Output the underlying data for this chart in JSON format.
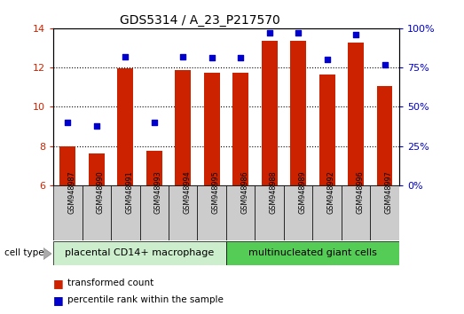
{
  "title": "GDS5314 / A_23_P217570",
  "samples": [
    "GSM948987",
    "GSM948990",
    "GSM948991",
    "GSM948993",
    "GSM948994",
    "GSM948995",
    "GSM948986",
    "GSM948988",
    "GSM948989",
    "GSM948992",
    "GSM948996",
    "GSM948997"
  ],
  "transformed_count": [
    7.98,
    7.62,
    11.97,
    7.77,
    11.88,
    11.72,
    11.72,
    13.35,
    13.35,
    11.63,
    13.25,
    11.07
  ],
  "percentile_rank_pct": [
    40,
    38,
    82,
    40,
    82,
    81,
    81,
    97,
    97,
    80,
    96,
    77
  ],
  "group1_label": "placental CD14+ macrophage",
  "group2_label": "multinucleated giant cells",
  "group1_count": 6,
  "group2_count": 6,
  "ylim_left": [
    6,
    14
  ],
  "ylim_right": [
    0,
    100
  ],
  "yticks_left": [
    6,
    8,
    10,
    12,
    14
  ],
  "yticks_right": [
    0,
    25,
    50,
    75,
    100
  ],
  "bar_color": "#cc2200",
  "dot_color": "#0000cc",
  "group1_color": "#cceecc",
  "group2_color": "#55cc55",
  "cell_type_label": "cell type",
  "legend1": "transformed count",
  "legend2": "percentile rank within the sample",
  "bar_width": 0.55,
  "label_box_color": "#cccccc"
}
